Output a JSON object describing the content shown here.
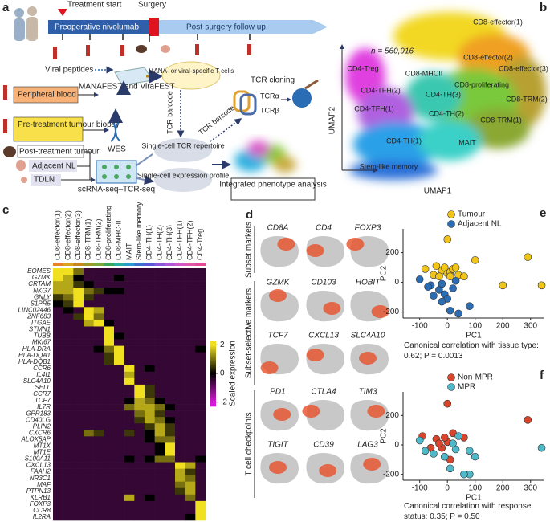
{
  "panel_labels": [
    "a",
    "b",
    "c",
    "d",
    "e",
    "f"
  ],
  "panel_a": {
    "treatment_start": "Treatment start",
    "surgery": "Surgery",
    "preoperative": "Preoperative nivolumab",
    "follow_up": "Post-surgery follow up",
    "viral_peptides": "Viral peptides",
    "peripheral_blood": "Peripheral blood",
    "manafest": "MANAFEST and ViraFEST",
    "specific_cells": "MANA- or viral-specific T cells",
    "tcr_cloning": "TCR cloning",
    "tcr_alpha": "TCRα",
    "tcr_beta": "TCRβ",
    "tcr_barcode_1": "TCR barcode",
    "tcr_barcode_2": "TCR barcode",
    "pre_biopsy": "Pre-treatment tumour biopsy",
    "wes": "WES",
    "post_tumour": "Post-treatment tumour",
    "adjacent_nl": "Adjacent NL",
    "tdln": "TDLN",
    "scrna": "scRNA-seq–TCR-seq",
    "tcr_repertoire": "Single-cell TCR repertoire",
    "expression_profile": "Single-cell expression profile",
    "integrated": "Integrated phenotype analysis"
  },
  "panel_b": {
    "n_label": "n = 560,916",
    "x_label": "UMAP1",
    "y_label": "UMAP2",
    "clusters": [
      "CD8-effector(1)",
      "CD8-effector(2)",
      "CD8-effector(3)",
      "CD4-Treg",
      "CD8-MHCII",
      "CD4-TFH(2)",
      "CD8-proliferating",
      "CD4-TH(3)",
      "CD8-TRM(2)",
      "CD4-TFH(1)",
      "CD4-TH(2)",
      "CD8-TRM(1)",
      "CD4-TH(1)",
      "MAIT",
      "Stem-like memory"
    ]
  },
  "panel_c": {
    "columns": [
      "CD8-effector(1)",
      "CD8-effector(2)",
      "CD8-effector(3)",
      "CD8-TRM(1)",
      "CD8-TRM(2)",
      "CD8-proliferating",
      "CD8-MHC-II",
      "MAIT",
      "Stem-like memory",
      "CD4-TH(1)",
      "CD4-TH(2)",
      "CD4-TH(3)",
      "CD4-TFH(1)",
      "CD4-TFH(2)",
      "CD4-Treg"
    ],
    "column_colors": [
      "#e8822a",
      "#d9a21f",
      "#c9861d",
      "#9a9a2a",
      "#7aa83a",
      "#3aa858",
      "#2ab0a0",
      "#2a9ad0",
      "#3a70d0",
      "#5a58d8",
      "#8a58d8",
      "#b058d8",
      "#d058c8",
      "#e058a8",
      "#e84898"
    ],
    "genes": [
      "EOMES",
      "GZMK",
      "CRTAM",
      "NKG7",
      "GNLY",
      "S1PR5",
      "LINC02446",
      "ZNF683",
      "ITGAE",
      "STMN1",
      "TUBB",
      "MKI67",
      "HLA-DRA",
      "HLA-DQA1",
      "HLA-DQB1",
      "CCR6",
      "IL4I1",
      "SLC4A10",
      "SELL",
      "CCR7",
      "TCF7",
      "IL7R",
      "GPR183",
      "CD40LG",
      "PLIN2",
      "CXCR6",
      "ALOX5AP",
      "MT1X",
      "MT1E",
      "S100A11",
      "CXCL13",
      "FAAH2",
      "NR3C1",
      "MAF",
      "PTPN13",
      "KLRB1",
      "FOXP3",
      "CCR8",
      "IL2RA"
    ],
    "values": [
      [
        2,
        2,
        1,
        -0.5,
        -0.5,
        -0.5,
        -0.5,
        -0.5,
        -0.5,
        -0.5,
        -0.5,
        -0.5,
        -0.5,
        -0.5,
        -0.5
      ],
      [
        2,
        1.5,
        0,
        -0.5,
        -0.5,
        -0.5,
        0,
        -0.5,
        -0.5,
        -0.5,
        -0.5,
        -0.5,
        -0.5,
        -0.5,
        -0.5
      ],
      [
        1.5,
        1.5,
        0.5,
        0,
        -0.5,
        -0.5,
        -0.5,
        -0.5,
        -0.5,
        -0.5,
        -0.5,
        -0.5,
        -0.5,
        -0.5,
        -0.5
      ],
      [
        1.5,
        1.5,
        2,
        1,
        0.5,
        0,
        0,
        -0.5,
        -0.5,
        -0.5,
        -0.5,
        -0.5,
        -0.5,
        -0.5,
        -0.5
      ],
      [
        0.5,
        1,
        2,
        0.5,
        -0.5,
        -0.5,
        -0.5,
        -0.5,
        -0.5,
        -0.5,
        -0.5,
        -0.5,
        -0.5,
        -0.5,
        -0.5
      ],
      [
        0,
        0.5,
        2,
        -0.5,
        -0.5,
        -0.5,
        -0.5,
        -0.5,
        -0.5,
        -0.5,
        -0.5,
        -0.5,
        -0.5,
        -0.5,
        -0.5
      ],
      [
        -0.5,
        0,
        -0.5,
        2,
        1.5,
        -0.5,
        -0.5,
        -0.5,
        -0.5,
        -0.5,
        -0.5,
        -0.5,
        -0.5,
        -0.5,
        -0.5
      ],
      [
        -0.5,
        -0.5,
        0.5,
        2,
        1,
        -0.5,
        -0.5,
        -0.5,
        -0.5,
        -0.5,
        -0.5,
        -0.5,
        -0.5,
        -0.5,
        -0.5
      ],
      [
        -0.5,
        -0.5,
        -0.5,
        1.5,
        2,
        0,
        -0.5,
        -0.5,
        -0.5,
        -0.5,
        -0.5,
        -0.5,
        -0.5,
        -0.5,
        -0.5
      ],
      [
        -0.5,
        -0.5,
        -0.5,
        -0.5,
        -0.5,
        2,
        -0.5,
        -0.5,
        -0.5,
        -0.5,
        -0.5,
        -0.5,
        -0.5,
        -0.5,
        -0.5
      ],
      [
        -0.5,
        -0.5,
        -0.5,
        -0.5,
        -0.5,
        2,
        0,
        -0.5,
        -0.5,
        -0.5,
        -0.5,
        -0.5,
        -0.5,
        -0.5,
        -0.5
      ],
      [
        -0.5,
        -0.5,
        -0.5,
        -0.5,
        -0.5,
        2,
        -0.5,
        -0.5,
        -0.5,
        -0.5,
        -0.5,
        -0.5,
        -0.5,
        -0.5,
        -0.5
      ],
      [
        -0.5,
        -0.5,
        -0.5,
        -0.5,
        0,
        1,
        2,
        -0.5,
        -0.5,
        -0.5,
        -0.5,
        -0.5,
        -0.5,
        -0.5,
        0
      ],
      [
        -0.5,
        -0.5,
        -0.5,
        -0.5,
        -0.5,
        0.5,
        2,
        -0.5,
        -0.5,
        -0.5,
        -0.5,
        -0.5,
        -0.5,
        -0.5,
        -0.5
      ],
      [
        -0.5,
        -0.5,
        -0.5,
        -0.5,
        -0.5,
        0.5,
        2,
        -0.5,
        -0.5,
        -0.5,
        -0.5,
        -0.5,
        -0.5,
        -0.5,
        -0.5
      ],
      [
        -0.5,
        -0.5,
        -0.5,
        -0.5,
        -0.5,
        -0.5,
        -0.5,
        2,
        -0.5,
        0,
        -0.5,
        -0.5,
        -0.5,
        -0.5,
        -0.5
      ],
      [
        -0.5,
        -0.5,
        -0.5,
        -0.5,
        -0.5,
        -0.5,
        -0.5,
        1.5,
        -0.5,
        -0.5,
        -0.5,
        -0.5,
        -0.5,
        -0.5,
        -0.5
      ],
      [
        -0.5,
        -0.5,
        -0.5,
        -0.5,
        -0.5,
        -0.5,
        -0.5,
        2,
        -0.5,
        -0.5,
        -0.5,
        -0.5,
        -0.5,
        -0.5,
        -0.5
      ],
      [
        -0.5,
        -0.5,
        -0.5,
        -0.5,
        -0.5,
        -0.5,
        -0.5,
        -0.5,
        2,
        0.5,
        -0.5,
        -0.5,
        -0.5,
        -0.5,
        -0.5
      ],
      [
        -0.5,
        -0.5,
        -0.5,
        -0.5,
        -0.5,
        -0.5,
        -0.5,
        -0.5,
        2,
        0.5,
        -0.5,
        -0.5,
        -0.5,
        -0.5,
        -0.5
      ],
      [
        -0.5,
        -0.5,
        -0.5,
        -0.5,
        -0.5,
        -0.5,
        -0.5,
        0,
        1.5,
        1,
        0,
        -0.5,
        -0.5,
        -0.5,
        -0.5
      ],
      [
        -0.5,
        -0.5,
        -0.5,
        -0.5,
        -0.5,
        -0.5,
        -0.5,
        1,
        1.5,
        1.5,
        1,
        0,
        -0.5,
        -0.5,
        -0.5
      ],
      [
        -0.5,
        -0.5,
        -0.5,
        -0.5,
        -0.5,
        -0.5,
        -0.5,
        -0.5,
        1,
        1.5,
        0.5,
        -0.5,
        -0.5,
        -0.5,
        -0.5
      ],
      [
        -0.5,
        -0.5,
        -0.5,
        -0.5,
        -0.5,
        -0.5,
        -0.5,
        -0.5,
        0.5,
        1.5,
        1,
        0,
        -0.5,
        -0.5,
        -0.5
      ],
      [
        -0.5,
        -0.5,
        -0.5,
        -0.5,
        -0.5,
        -0.5,
        -0.5,
        -0.5,
        -0.5,
        0.5,
        1.5,
        0.5,
        -0.5,
        -0.5,
        -0.5
      ],
      [
        -0.5,
        -0.5,
        -0.5,
        1,
        0.5,
        -0.5,
        -0.5,
        0.5,
        -0.5,
        0,
        1.5,
        0.5,
        -0.5,
        -0.5,
        -0.5
      ],
      [
        -0.5,
        -0.5,
        -0.5,
        -0.5,
        -0.5,
        -0.5,
        -0.5,
        -0.5,
        -0.5,
        0,
        1,
        1,
        -0.5,
        -0.5,
        -0.5
      ],
      [
        -0.5,
        -0.5,
        -0.5,
        -0.5,
        -0.5,
        -0.5,
        -0.5,
        -0.5,
        -0.5,
        -0.5,
        0,
        2,
        -0.5,
        -0.5,
        -0.5
      ],
      [
        -0.5,
        -0.5,
        -0.5,
        -0.5,
        -0.5,
        -0.5,
        -0.5,
        -0.5,
        -0.5,
        -0.5,
        0,
        2,
        -0.5,
        -0.5,
        -0.5
      ],
      [
        -0.5,
        -0.5,
        -0.5,
        -0.5,
        -0.5,
        -0.5,
        -0.5,
        0,
        -0.5,
        0,
        1,
        1,
        -0.5,
        -0.5,
        0
      ],
      [
        -0.5,
        -0.5,
        -0.5,
        -0.5,
        -0.5,
        -0.5,
        -0.5,
        -0.5,
        -0.5,
        -0.5,
        -0.5,
        -0.5,
        2,
        1.5,
        -0.5
      ],
      [
        -0.5,
        -0.5,
        -0.5,
        -0.5,
        -0.5,
        -0.5,
        -0.5,
        -0.5,
        -0.5,
        -0.5,
        -0.5,
        -0.5,
        1.5,
        0.5,
        -0.5
      ],
      [
        -0.5,
        -0.5,
        -0.5,
        -0.5,
        -0.5,
        -0.5,
        -0.5,
        -0.5,
        -0.5,
        -0.5,
        -0.5,
        -0.5,
        1.5,
        1,
        -0.5
      ],
      [
        -0.5,
        -0.5,
        -0.5,
        -0.5,
        -0.5,
        -0.5,
        -0.5,
        -0.5,
        -0.5,
        -0.5,
        -0.5,
        -0.5,
        1,
        1.5,
        -0.5
      ],
      [
        -0.5,
        -0.5,
        -0.5,
        -0.5,
        -0.5,
        -0.5,
        -0.5,
        -0.5,
        -0.5,
        -0.5,
        -0.5,
        -0.5,
        0.5,
        1.5,
        -0.5
      ],
      [
        -0.5,
        -0.5,
        -0.5,
        -0.5,
        -0.5,
        -0.5,
        -0.5,
        1.5,
        -0.5,
        0,
        -0.5,
        -0.5,
        -0.5,
        1,
        -0.5
      ],
      [
        -0.5,
        -0.5,
        -0.5,
        -0.5,
        -0.5,
        -0.5,
        -0.5,
        -0.5,
        -0.5,
        -0.5,
        -0.5,
        -0.5,
        -0.5,
        -0.5,
        2
      ],
      [
        -0.5,
        -0.5,
        -0.5,
        -0.5,
        -0.5,
        -0.5,
        -0.5,
        -0.5,
        -0.5,
        -0.5,
        -0.5,
        -0.5,
        -0.5,
        -0.5,
        2
      ],
      [
        -0.5,
        -0.5,
        -0.5,
        -0.5,
        -0.5,
        -0.5,
        -0.5,
        -0.5,
        -0.5,
        -0.5,
        -0.5,
        -0.5,
        -0.5,
        0,
        2
      ]
    ],
    "colorbar": {
      "label": "Scaled expression",
      "lim": [
        -2.3,
        2.3
      ],
      "ticks": [
        2,
        0,
        -2
      ]
    }
  },
  "panel_d": {
    "row_groups": [
      "Subset markers",
      "Subset-selective markers",
      "T cell checkpoints"
    ],
    "genes": [
      "CD8A",
      "CD4",
      "FOXP3",
      "GZMK",
      "CD103",
      "HOBIT",
      "TCF7",
      "CXCL13",
      "SLC4A10",
      "PD1",
      "CTLA4",
      "TIM3",
      "TIGIT",
      "CD39",
      "LAG3"
    ]
  },
  "panel_e": {
    "type": "scatter",
    "x_label": "PC1",
    "y_label": "PC2",
    "xlim": [
      -160,
      350
    ],
    "ylim": [
      -240,
      360
    ],
    "xticks": [
      -100,
      0,
      100,
      200,
      300
    ],
    "yticks": [
      -200,
      0,
      200
    ],
    "caption": "Canonical correlation with tissue type: 0.62; P = 0.0013",
    "series": [
      {
        "name": "Tumour",
        "color": "#f0c419",
        "x": [
          -50,
          -20,
          -10,
          0,
          10,
          20,
          -30,
          40,
          60,
          -40,
          0,
          100,
          290,
          340,
          200,
          30,
          -80,
          10
        ],
        "values": [
          50,
          80,
          100,
          60,
          70,
          90,
          40,
          50,
          40,
          110,
          290,
          150,
          170,
          -20,
          -20,
          100,
          90,
          40
        ]
      },
      {
        "name": "Adjacent NL",
        "color": "#2a6db5",
        "x": [
          -100,
          -60,
          -30,
          -10,
          20,
          -50,
          0,
          -20,
          10,
          40,
          80,
          -70,
          30,
          -20
        ],
        "values": [
          20,
          -20,
          -50,
          -80,
          -40,
          -90,
          -110,
          -130,
          -190,
          -210,
          -160,
          -30,
          10,
          -10
        ]
      }
    ]
  },
  "panel_f": {
    "type": "scatter",
    "x_label": "PC1",
    "y_label": "PC2",
    "xlim": [
      -160,
      350
    ],
    "ylim": [
      -240,
      360
    ],
    "xticks": [
      -100,
      0,
      100,
      200,
      300
    ],
    "yticks": [
      -200,
      0,
      200
    ],
    "caption": "Canonical correlation with response status: 0.35; P = 0.50",
    "series": [
      {
        "name": "Non-MPR",
        "color": "#d9452b",
        "x": [
          -40,
          0,
          -10,
          20,
          60,
          -60,
          -20,
          10,
          290,
          0,
          -90,
          -30
        ],
        "values": [
          40,
          20,
          50,
          80,
          50,
          -20,
          -20,
          -100,
          170,
          280,
          60,
          10
        ]
      },
      {
        "name": "MPR",
        "color": "#4fb8c9",
        "x": [
          -80,
          -50,
          -10,
          30,
          20,
          40,
          80,
          100,
          80,
          60,
          340,
          -100,
          10
        ],
        "values": [
          -40,
          -60,
          -80,
          -30,
          10,
          60,
          -40,
          -80,
          -200,
          -200,
          -20,
          30,
          -160
        ]
      }
    ]
  }
}
